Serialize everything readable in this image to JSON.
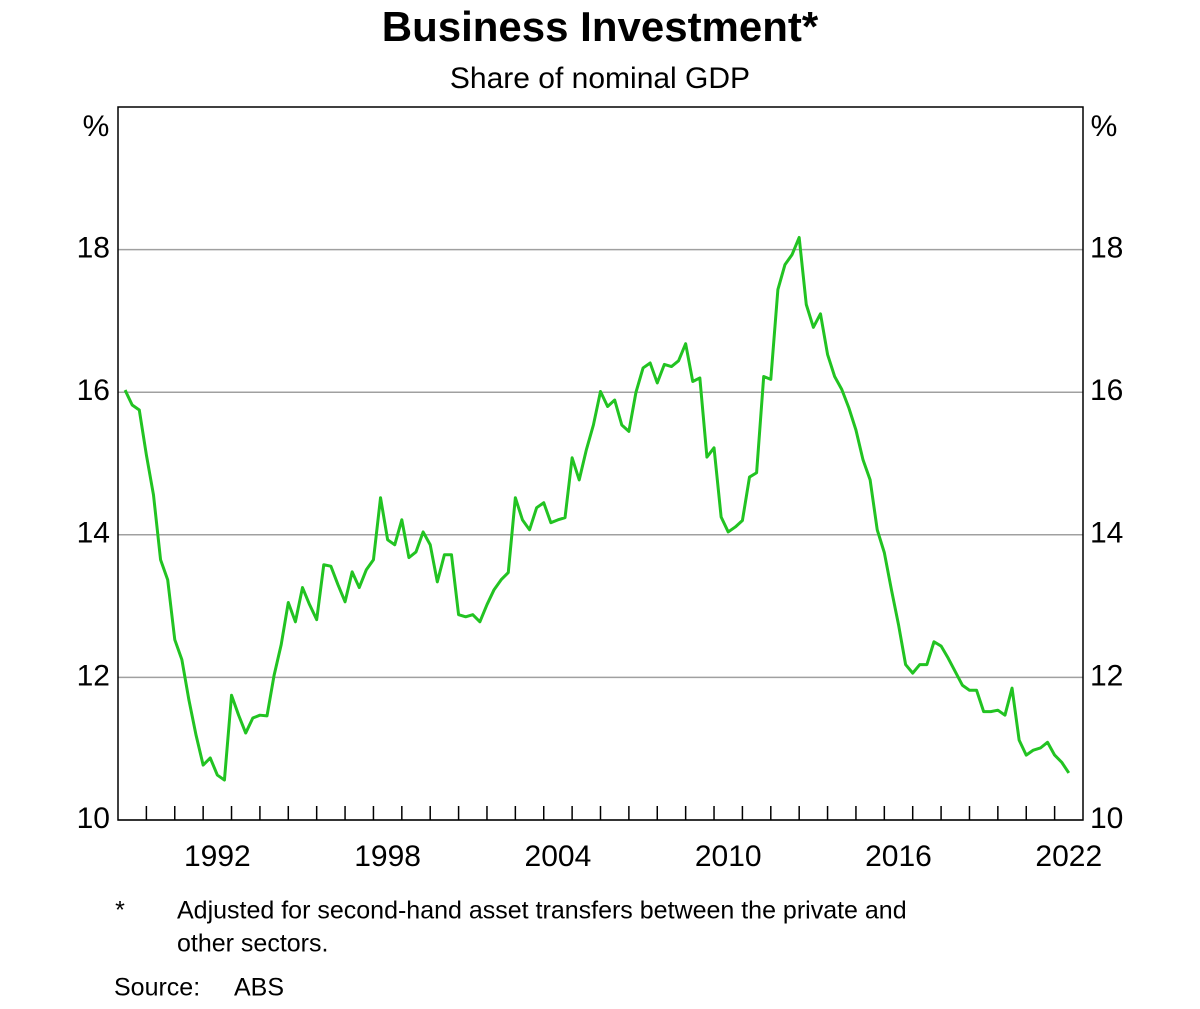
{
  "chart_data": {
    "type": "line",
    "title": "Business Investment*",
    "subtitle": "Share of nominal GDP",
    "y_label": "%",
    "footnote_marker": "*",
    "footnote": [
      "Adjusted for second-hand asset transfers between the private and",
      "other sectors."
    ],
    "source_label": "Source:",
    "source": "ABS",
    "xlim": [
      1989,
      2023
    ],
    "xticks": [
      {
        "value": 1992.5,
        "label": "1992"
      },
      {
        "value": 1998.5,
        "label": "1998"
      },
      {
        "value": 2004.5,
        "label": "2004"
      },
      {
        "value": 2010.5,
        "label": "2010"
      },
      {
        "value": 2016.5,
        "label": "2016"
      },
      {
        "value": 2022.5,
        "label": "2022"
      }
    ],
    "xticks_minor": [
      1990,
      1991,
      1992,
      1993,
      1994,
      1995,
      1996,
      1997,
      1998,
      1999,
      2000,
      2001,
      2002,
      2003,
      2004,
      2005,
      2006,
      2007,
      2008,
      2009,
      2010,
      2011,
      2012,
      2013,
      2014,
      2015,
      2016,
      2017,
      2018,
      2019,
      2020,
      2021,
      2022
    ],
    "ylim": [
      10,
      20
    ],
    "yticks": [
      10,
      12,
      14,
      16,
      18
    ],
    "grid": true,
    "x": [
      1989.25,
      1989.5,
      1989.75,
      1990,
      1990.25,
      1990.5,
      1990.75,
      1991,
      1991.25,
      1991.5,
      1991.75,
      1992,
      1992.25,
      1992.5,
      1992.75,
      1993,
      1993.25,
      1993.5,
      1993.75,
      1994,
      1994.25,
      1994.5,
      1994.75,
      1995,
      1995.25,
      1995.5,
      1995.75,
      1996,
      1996.25,
      1996.5,
      1996.75,
      1997,
      1997.25,
      1997.5,
      1997.75,
      1998,
      1998.25,
      1998.5,
      1998.75,
      1999,
      1999.25,
      1999.5,
      1999.75,
      2000,
      2000.25,
      2000.5,
      2000.75,
      2001,
      2001.25,
      2001.5,
      2001.75,
      2002,
      2002.25,
      2002.5,
      2002.75,
      2003,
      2003.25,
      2003.5,
      2003.75,
      2004,
      2004.25,
      2004.5,
      2004.75,
      2005,
      2005.25,
      2005.5,
      2005.75,
      2006,
      2006.25,
      2006.5,
      2006.75,
      2007,
      2007.25,
      2007.5,
      2007.75,
      2008,
      2008.25,
      2008.5,
      2008.75,
      2009,
      2009.25,
      2009.5,
      2009.75,
      2010,
      2010.25,
      2010.5,
      2010.75,
      2011,
      2011.25,
      2011.5,
      2011.75,
      2012,
      2012.25,
      2012.5,
      2012.75,
      2013,
      2013.25,
      2013.5,
      2013.75,
      2014,
      2014.25,
      2014.5,
      2014.75,
      2015,
      2015.25,
      2015.5,
      2015.75,
      2016,
      2016.25,
      2016.5,
      2016.75,
      2017,
      2017.25,
      2017.5,
      2017.75,
      2018,
      2018.25,
      2018.5,
      2018.75,
      2019,
      2019.25,
      2019.5,
      2019.75,
      2020,
      2020.25,
      2020.5,
      2020.75,
      2021,
      2021.25,
      2021.5,
      2021.75,
      2022,
      2022.25,
      2022.5
    ],
    "series": [
      {
        "color": "#22c322",
        "values": [
          16.03,
          15.82,
          15.75,
          15.12,
          14.56,
          13.65,
          13.37,
          12.53,
          12.25,
          11.68,
          11.19,
          10.77,
          10.87,
          10.63,
          10.56,
          11.75,
          11.47,
          11.22,
          11.43,
          11.47,
          11.46,
          12.03,
          12.46,
          13.05,
          12.78,
          13.26,
          13.02,
          12.81,
          13.58,
          13.56,
          13.3,
          13.06,
          13.48,
          13.26,
          13.51,
          13.65,
          14.52,
          13.93,
          13.86,
          14.21,
          13.68,
          13.76,
          14.04,
          13.86,
          13.34,
          13.72,
          13.72,
          12.88,
          12.85,
          12.88,
          12.78,
          13.02,
          13.23,
          13.37,
          13.47,
          14.52,
          14.21,
          14.07,
          14.38,
          14.45,
          14.17,
          14.21,
          14.24,
          15.08,
          14.77,
          15.19,
          15.54,
          16.01,
          15.8,
          15.89,
          15.54,
          15.45,
          16.0,
          16.34,
          16.41,
          16.13,
          16.39,
          16.36,
          16.44,
          16.68,
          16.15,
          16.2,
          15.09,
          15.22,
          14.25,
          14.04,
          14.11,
          14.2,
          14.81,
          14.87,
          16.22,
          16.18,
          17.44,
          17.79,
          17.93,
          18.17,
          17.23,
          16.91,
          17.1,
          16.53,
          16.22,
          16.04,
          15.78,
          15.47,
          15.05,
          14.77,
          14.07,
          13.75,
          13.23,
          12.74,
          12.18,
          12.06,
          12.18,
          12.18,
          12.5,
          12.44,
          12.27,
          12.08,
          11.89,
          11.82,
          11.82,
          11.52,
          11.52,
          11.54,
          11.47,
          11.85,
          11.12,
          10.91,
          10.98,
          11.01,
          11.09,
          10.91,
          10.81,
          10.66
        ]
      }
    ]
  }
}
